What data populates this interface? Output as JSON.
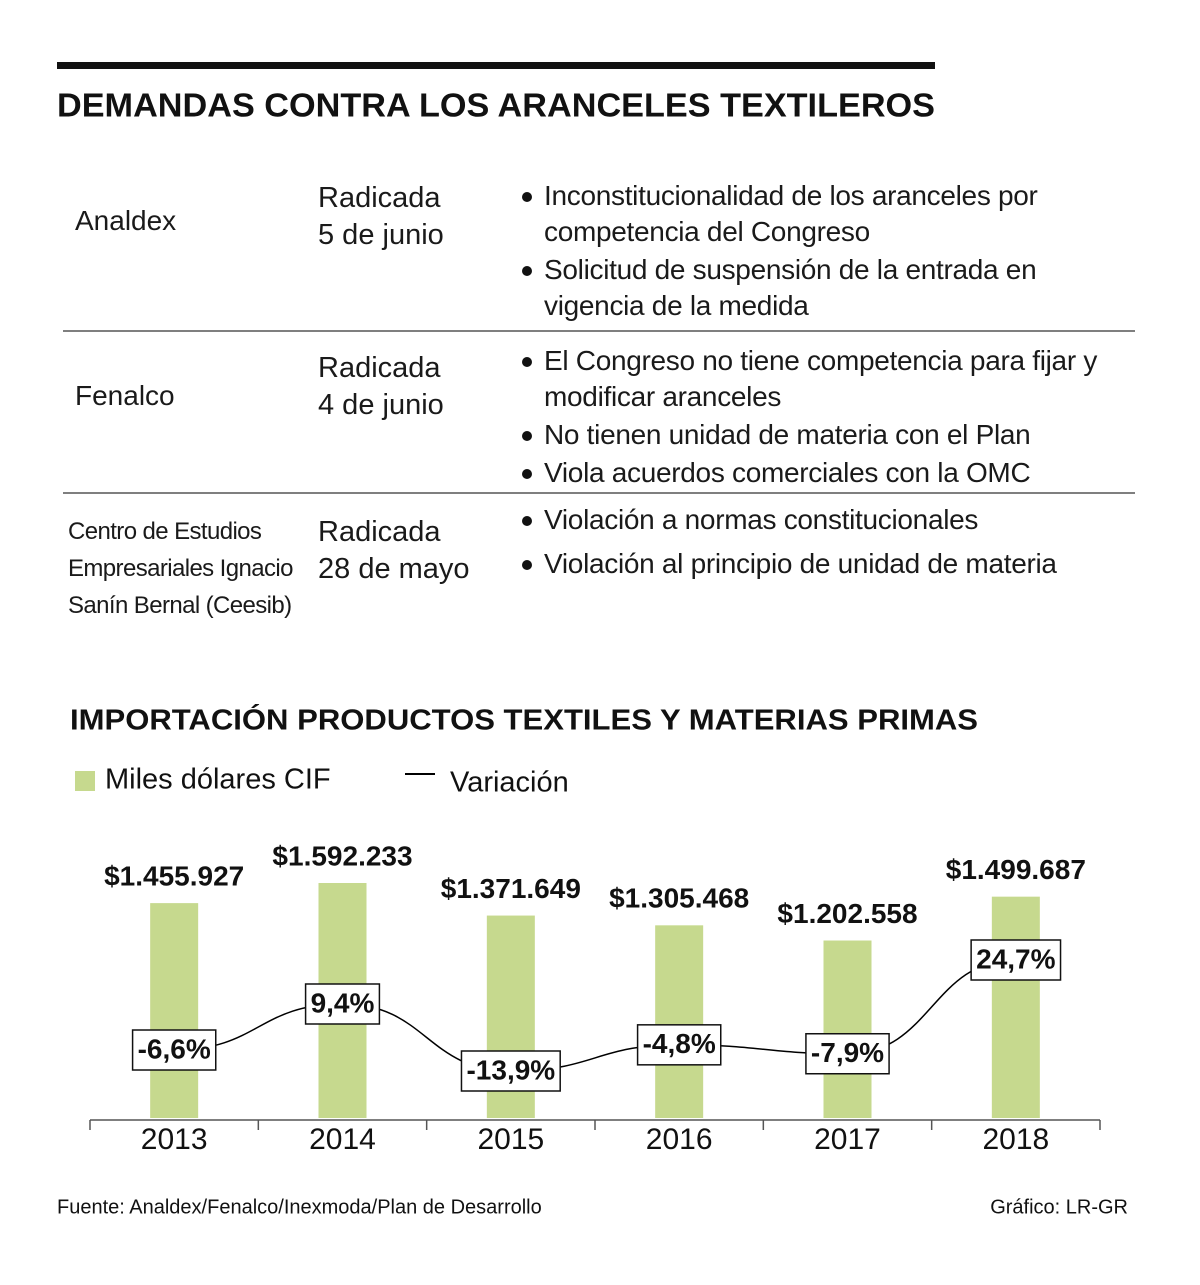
{
  "title": "DEMANDAS CONTRA LOS ARANCELES TEXTILEROS",
  "table": {
    "rows": [
      {
        "entity": "Analdex",
        "status": "Radicada",
        "date": "5 de junio",
        "points": [
          "Inconstitucionalidad de los aranceles por competencia del Congreso",
          "Solicitud de suspensión de la entrada en vigencia de la medida"
        ]
      },
      {
        "entity": "Fenalco",
        "status": "Radicada",
        "date": "4 de junio",
        "points": [
          "El Congreso no tiene competencia para fijar y modificar aranceles",
          "No tienen unidad de materia con el Plan",
          "Viola acuerdos comerciales con la OMC"
        ]
      },
      {
        "entity": "Centro de Estudios Empresariales Ignacio Sanín Bernal (Ceesib)",
        "status": "Radicada",
        "date": "28 de mayo",
        "points": [
          "Violación a normas constitucionales",
          "Violación al principio de unidad de materia"
        ]
      }
    ]
  },
  "chart_data": {
    "type": "bar",
    "title": "IMPORTACIÓN PRODUCTOS TEXTILES Y MATERIAS PRIMAS",
    "categories": [
      "2013",
      "2014",
      "2015",
      "2016",
      "2017",
      "2018"
    ],
    "series": [
      {
        "name": "Miles dólares CIF",
        "type": "bar",
        "color": "#c6d98e",
        "values": [
          1455927,
          1592233,
          1371649,
          1305468,
          1202558,
          1499687
        ],
        "value_labels": [
          "$1.455.927",
          "$1.592.233",
          "$1.371.649",
          "$1.305.468",
          "$1.202.558",
          "$1.499.687"
        ]
      },
      {
        "name": "Variación",
        "type": "line",
        "color": "#000000",
        "values": [
          -6.6,
          9.4,
          -13.9,
          -4.8,
          -7.9,
          24.7
        ],
        "value_labels": [
          "-6,6%",
          "9,4%",
          "-13,9%",
          "-4,8%",
          "-7,9%",
          "24,7%"
        ]
      }
    ]
  },
  "source": "Fuente: Analdex/Fenalco/Inexmoda/Plan de Desarrollo",
  "credit": "Gráfico: LR-GR"
}
